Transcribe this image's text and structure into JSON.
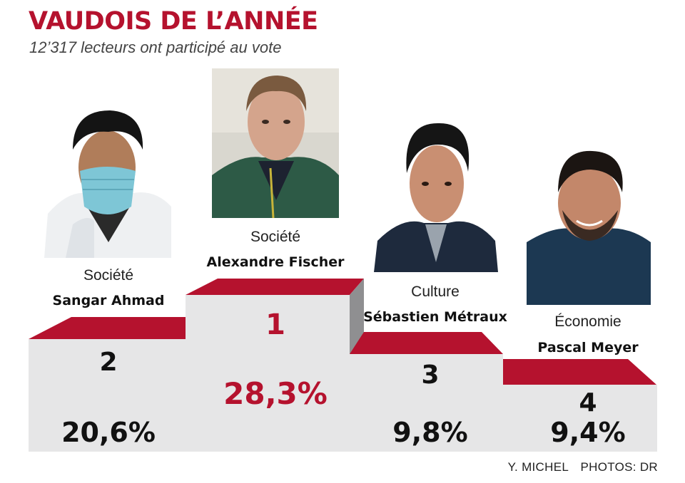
{
  "title": "VAUDOIS DE L’ANNÉE",
  "subtitle": "12’317 lecteurs ont participé au vote",
  "credits": {
    "author": "Y. MICHEL",
    "photos": "PHOTOS: DR"
  },
  "colors": {
    "accent": "#b5122e",
    "step_front": "#e6e6e7",
    "step_side": "#8f8f91"
  },
  "chart_data": {
    "type": "bar",
    "title": "VAUDOIS DE L’ANNÉE",
    "subtitle": "12’317 lecteurs ont participé au vote",
    "unit": "%",
    "categories": [
      "Sangar Ahmad",
      "Alexandre Fischer",
      "Sébastien Métraux",
      "Pascal Meyer"
    ],
    "values": [
      20.6,
      28.3,
      9.8,
      9.4
    ],
    "entries": [
      {
        "rank": "2",
        "category": "Société",
        "name": "Sangar Ahmad",
        "value": 20.6,
        "label": "20,6%",
        "photo": "portrait-face-mask"
      },
      {
        "rank": "1",
        "category": "Société",
        "name": "Alexandre Fischer",
        "value": 28.3,
        "label": "28,3%",
        "photo": "portrait-green-jacket"
      },
      {
        "rank": "3",
        "category": "Culture",
        "name": "Sébastien Métraux",
        "value": 9.8,
        "label": "9,8%",
        "photo": "portrait-dark-jacket"
      },
      {
        "rank": "4",
        "category": "Économie",
        "name": "Pascal Meyer",
        "value": 9.4,
        "label": "9,4%",
        "photo": "portrait-smiling-beard"
      }
    ],
    "legend": "none",
    "grid": false
  }
}
